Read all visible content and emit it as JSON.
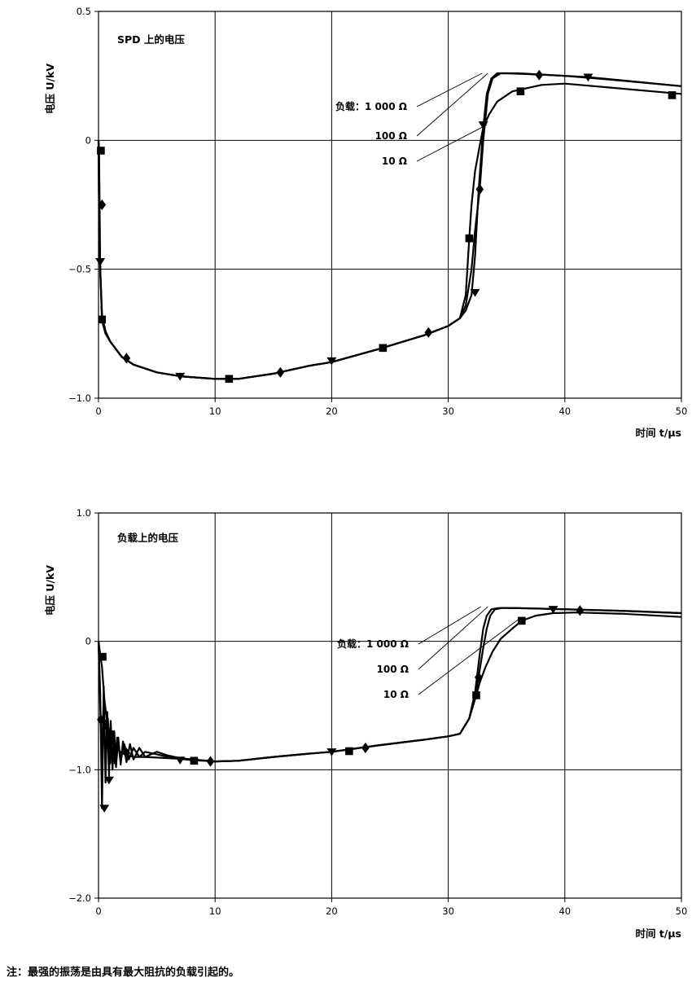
{
  "note": "注：最强的振荡是由具有最大阻抗的负载引起的。",
  "chart_data": [
    {
      "type": "line",
      "title": "SPD 上的电压",
      "xlabel": "时间 t/μs",
      "ylabel": "电压 U/kV",
      "xlim": [
        0,
        50
      ],
      "ylim": [
        -1.0,
        0.5
      ],
      "grid": true,
      "x_ticks": [
        "0",
        "10",
        "20",
        "30",
        "40",
        "50"
      ],
      "y_ticks": [
        "0.5",
        "0",
        "−0.5",
        "−1.0"
      ],
      "annotations": [
        "负载：1 000 Ω",
        "100 Ω",
        "10 Ω"
      ],
      "series": [
        {
          "name": "负载：1 000 Ω",
          "marker": "triangle-down",
          "x": [
            0,
            0.05,
            0.15,
            0.3,
            0.6,
            1,
            2,
            3,
            5,
            7,
            10,
            12,
            15,
            18,
            20,
            24,
            28,
            30,
            31,
            31.5,
            32,
            32.3,
            32.6,
            33,
            33.3,
            33.7,
            34.2,
            35,
            38,
            42,
            50
          ],
          "y": [
            0,
            -0.3,
            -0.5,
            -0.68,
            -0.74,
            -0.78,
            -0.84,
            -0.87,
            -0.9,
            -0.915,
            -0.925,
            -0.925,
            -0.905,
            -0.875,
            -0.86,
            -0.81,
            -0.755,
            -0.72,
            -0.69,
            -0.66,
            -0.6,
            -0.45,
            -0.2,
            0.05,
            0.18,
            0.24,
            0.26,
            0.26,
            0.255,
            0.245,
            0.21
          ],
          "marker_x": [
            0.15,
            7,
            20,
            32.3,
            33,
            42
          ],
          "marker_y": [
            -0.47,
            -0.915,
            -0.855,
            -0.59,
            0.06,
            0.245
          ]
        },
        {
          "name": "100 Ω",
          "marker": "diamond",
          "x": [
            0,
            0.05,
            0.15,
            0.3,
            0.6,
            1,
            2,
            3,
            5,
            7,
            10,
            12,
            15,
            18,
            20,
            24,
            28,
            30,
            31,
            31.5,
            32,
            32.3,
            32.7,
            33,
            33.4,
            33.8,
            34.5,
            36,
            40,
            44,
            50
          ],
          "y": [
            0,
            -0.25,
            -0.5,
            -0.68,
            -0.74,
            -0.78,
            -0.84,
            -0.87,
            -0.9,
            -0.915,
            -0.925,
            -0.925,
            -0.905,
            -0.875,
            -0.86,
            -0.81,
            -0.755,
            -0.72,
            -0.69,
            -0.64,
            -0.5,
            -0.35,
            -0.19,
            0,
            0.18,
            0.24,
            0.26,
            0.26,
            0.25,
            0.235,
            0.21
          ],
          "marker_x": [
            0.3,
            2.4,
            15.6,
            28.3,
            32.7,
            37.8
          ],
          "marker_y": [
            -0.25,
            -0.845,
            -0.9,
            -0.745,
            -0.19,
            0.253
          ]
        },
        {
          "name": "10 Ω",
          "marker": "square",
          "x": [
            0,
            0.05,
            0.15,
            0.3,
            0.6,
            1,
            2,
            3,
            5,
            7,
            10,
            12,
            15,
            18,
            20,
            24,
            28,
            30,
            31,
            31.5,
            31.8,
            32,
            32.3,
            32.7,
            33,
            33.5,
            34.2,
            35.5,
            38,
            40,
            45,
            50
          ],
          "y": [
            0,
            -0.04,
            -0.5,
            -0.7,
            -0.75,
            -0.78,
            -0.84,
            -0.87,
            -0.9,
            -0.915,
            -0.925,
            -0.925,
            -0.905,
            -0.875,
            -0.86,
            -0.81,
            -0.755,
            -0.72,
            -0.69,
            -0.6,
            -0.38,
            -0.25,
            -0.12,
            -0.02,
            0.05,
            0.1,
            0.15,
            0.19,
            0.215,
            0.22,
            0.2,
            0.18
          ],
          "marker_x": [
            0.2,
            0.3,
            11.2,
            24.4,
            31.8,
            36.2,
            49.2
          ],
          "marker_y": [
            -0.04,
            -0.695,
            -0.925,
            -0.805,
            -0.38,
            0.19,
            0.175
          ]
        }
      ]
    },
    {
      "type": "line",
      "title": "负载上的电压",
      "xlabel": "时间 t/μs",
      "ylabel": "电压 U/kV",
      "xlim": [
        0,
        50
      ],
      "ylim": [
        -2.0,
        1.0
      ],
      "grid": true,
      "x_ticks": [
        "0",
        "10",
        "20",
        "30",
        "40",
        "50"
      ],
      "y_ticks": [
        "1.0",
        "0",
        "−1.0",
        "−2.0"
      ],
      "annotations": [
        "负载：1 000 Ω",
        "100 Ω",
        "10 Ω"
      ],
      "series": [
        {
          "name": "负载：1 000 Ω",
          "marker": "triangle-down",
          "x": [
            0,
            0.15,
            0.3,
            0.45,
            0.6,
            0.75,
            0.9,
            1.05,
            1.2,
            1.35,
            1.5,
            1.7,
            1.9,
            2.1,
            2.4,
            2.7,
            3,
            3.5,
            4,
            5,
            6,
            7,
            8,
            10,
            12,
            15,
            18,
            20,
            24,
            28,
            30,
            31,
            31.8,
            32.3,
            32.7,
            33,
            33.3,
            33.7,
            34.3,
            35,
            38,
            42,
            46,
            50
          ],
          "y": [
            0,
            -0.4,
            -1.3,
            -0.35,
            -1.1,
            -0.55,
            -1.05,
            -0.62,
            -1.0,
            -0.7,
            -0.98,
            -0.75,
            -0.96,
            -0.78,
            -0.94,
            -0.8,
            -0.92,
            -0.83,
            -0.9,
            -0.86,
            -0.89,
            -0.91,
            -0.92,
            -0.935,
            -0.93,
            -0.9,
            -0.875,
            -0.86,
            -0.81,
            -0.765,
            -0.74,
            -0.72,
            -0.6,
            -0.4,
            -0.1,
            0.1,
            0.2,
            0.25,
            0.26,
            0.26,
            0.255,
            0.245,
            0.235,
            0.22
          ],
          "marker_x": [
            0.5,
            0.9,
            7,
            20,
            39
          ],
          "marker_y": [
            -1.3,
            -1.08,
            -0.925,
            -0.86,
            0.25
          ]
        },
        {
          "name": "100 Ω",
          "marker": "diamond",
          "x": [
            0,
            0.15,
            0.3,
            0.45,
            0.6,
            0.8,
            1,
            1.2,
            1.4,
            1.6,
            1.9,
            2.2,
            2.6,
            3,
            3.5,
            4,
            5,
            6,
            7,
            8,
            10,
            12,
            15,
            18,
            20,
            24,
            28,
            30,
            31,
            31.8,
            32.3,
            32.6,
            33,
            33.3,
            33.6,
            34,
            34.6,
            36,
            40,
            44,
            50
          ],
          "y": [
            0,
            -0.5,
            -0.9,
            -0.45,
            -0.95,
            -0.6,
            -0.95,
            -0.7,
            -0.95,
            -0.75,
            -0.93,
            -0.8,
            -0.92,
            -0.83,
            -0.9,
            -0.86,
            -0.88,
            -0.9,
            -0.91,
            -0.92,
            -0.935,
            -0.93,
            -0.9,
            -0.875,
            -0.86,
            -0.81,
            -0.765,
            -0.74,
            -0.72,
            -0.6,
            -0.45,
            -0.28,
            -0.05,
            0.1,
            0.2,
            0.25,
            0.26,
            0.26,
            0.25,
            0.24,
            0.22
          ],
          "marker_x": [
            0.2,
            0.6,
            2.4,
            9.6,
            22.9,
            32.6,
            41.3
          ],
          "marker_y": [
            -0.61,
            -0.65,
            -0.87,
            -0.935,
            -0.83,
            -0.28,
            0.24
          ]
        },
        {
          "name": "10 Ω",
          "marker": "square",
          "x": [
            0,
            0.15,
            0.3,
            0.5,
            0.7,
            0.9,
            1.2,
            1.5,
            2,
            2.5,
            3,
            4,
            5,
            6,
            7,
            8,
            10,
            12,
            15,
            18,
            20,
            24,
            28,
            30,
            31,
            31.8,
            32.1,
            32.4,
            32.7,
            33.2,
            33.8,
            34.5,
            35.5,
            36.3,
            37.5,
            39,
            41,
            45,
            50
          ],
          "y": [
            0,
            -0.1,
            -0.2,
            -0.45,
            -0.6,
            -0.7,
            -0.78,
            -0.83,
            -0.87,
            -0.89,
            -0.9,
            -0.9,
            -0.905,
            -0.91,
            -0.915,
            -0.925,
            -0.935,
            -0.93,
            -0.9,
            -0.875,
            -0.86,
            -0.81,
            -0.765,
            -0.74,
            -0.72,
            -0.6,
            -0.5,
            -0.42,
            -0.32,
            -0.2,
            -0.08,
            0.02,
            0.1,
            0.16,
            0.2,
            0.22,
            0.225,
            0.215,
            0.19
          ],
          "marker_x": [
            0.35,
            8.2,
            21.5,
            32.4,
            36.3
          ],
          "marker_y": [
            -0.12,
            -0.93,
            -0.855,
            -0.42,
            0.16
          ]
        }
      ]
    }
  ]
}
